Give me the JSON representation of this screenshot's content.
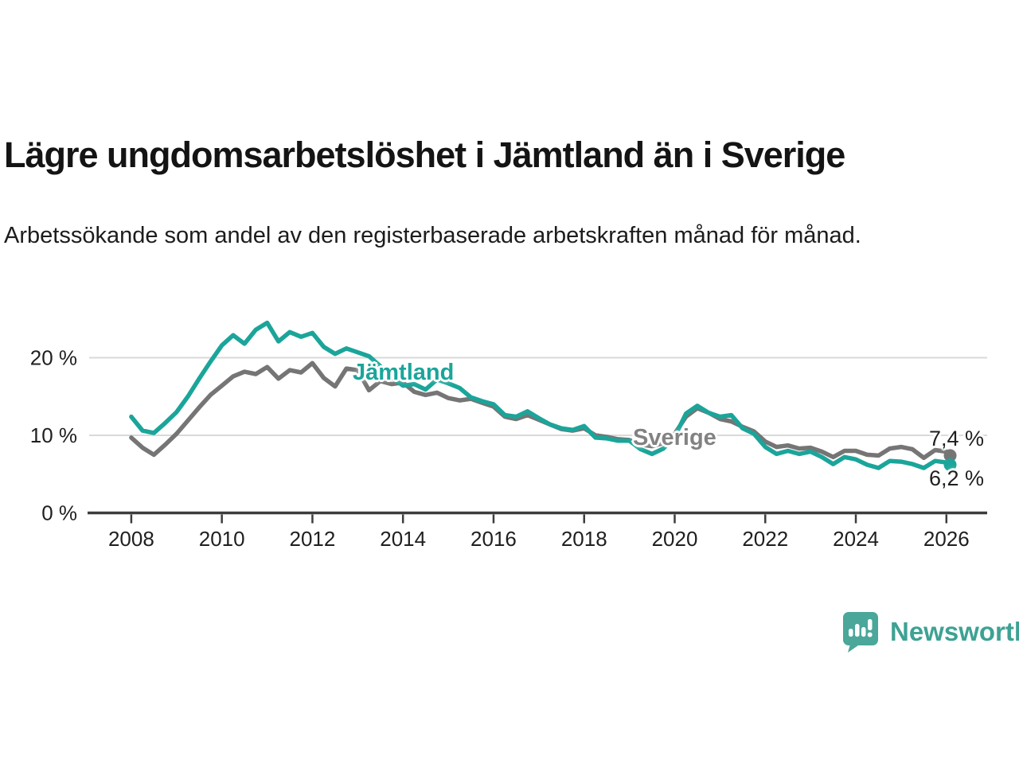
{
  "header": {
    "title": "Lägre ungdomsarbetslöshet i Jämtland än i Sverige",
    "subtitle": "Arbetssökande som andel av den registerbaserade arbetskraften månad för månad."
  },
  "colors": {
    "jamtland": "#1ba59a",
    "sverige": "#757575",
    "grid": "#d9d9d9",
    "axis": "#3d3d3d",
    "tick_text": "#1f1f1f",
    "brand": "#3da294"
  },
  "chart_data": {
    "type": "line",
    "title": "Lägre ungdomsarbetslöshet i Jämtland än i Sverige",
    "xlabel": "",
    "ylabel": "Arbetssökande som andel av den registerbaserade arbetskraften (%)",
    "grid": "horizontal-only",
    "legend_position": "inline-labels-on-lines",
    "xlim": [
      2007.07,
      2026.9
    ],
    "ylim": [
      0,
      27
    ],
    "x_ticks": [
      {
        "value": 2008,
        "label": "2008"
      },
      {
        "value": 2010,
        "label": "2010"
      },
      {
        "value": 2012,
        "label": "2012"
      },
      {
        "value": 2014,
        "label": "2014"
      },
      {
        "value": 2016,
        "label": "2016"
      },
      {
        "value": 2018,
        "label": "2018"
      },
      {
        "value": 2020,
        "label": "2020"
      },
      {
        "value": 2022,
        "label": "2022"
      },
      {
        "value": 2024,
        "label": "2024"
      },
      {
        "value": 2026,
        "label": "2026"
      }
    ],
    "y_ticks": [
      {
        "value": 0,
        "label": "0 %"
      },
      {
        "value": 10,
        "label": "10 %"
      },
      {
        "value": 20,
        "label": "20 %"
      }
    ],
    "x": [
      2008.0,
      2008.25,
      2008.5,
      2008.75,
      2009.0,
      2009.25,
      2009.5,
      2009.75,
      2010.0,
      2010.25,
      2010.5,
      2010.75,
      2011.0,
      2011.25,
      2011.5,
      2011.75,
      2012.0,
      2012.25,
      2012.5,
      2012.75,
      2013.0,
      2013.25,
      2013.5,
      2013.75,
      2014.0,
      2014.25,
      2014.5,
      2014.75,
      2015.0,
      2015.25,
      2015.5,
      2015.75,
      2016.0,
      2016.25,
      2016.5,
      2016.75,
      2017.0,
      2017.25,
      2017.5,
      2017.75,
      2018.0,
      2018.25,
      2018.5,
      2018.75,
      2019.0,
      2019.25,
      2019.5,
      2019.75,
      2020.0,
      2020.25,
      2020.5,
      2020.75,
      2021.0,
      2021.25,
      2021.5,
      2021.75,
      2022.0,
      2022.25,
      2022.5,
      2022.75,
      2023.0,
      2023.25,
      2023.5,
      2023.75,
      2024.0,
      2024.25,
      2024.5,
      2024.75,
      2025.0,
      2025.25,
      2025.5,
      2025.75,
      2026.0,
      2026.083
    ],
    "series": [
      {
        "key": "jamtland",
        "name": "Jämtland",
        "color": "#1ba59a",
        "end_label": "6,2 %",
        "end_value": 6.2,
        "values": [
          12.4,
          10.6,
          10.3,
          11.6,
          13.0,
          15.0,
          17.3,
          19.5,
          21.6,
          22.9,
          21.8,
          23.6,
          24.5,
          22.1,
          23.3,
          22.7,
          23.2,
          21.4,
          20.5,
          21.2,
          20.7,
          20.2,
          18.9,
          17.5,
          16.4,
          16.6,
          15.9,
          17.2,
          16.7,
          16.1,
          14.9,
          14.4,
          14.0,
          12.6,
          12.4,
          13.1,
          12.2,
          11.4,
          10.9,
          10.7,
          11.2,
          9.7,
          9.6,
          9.3,
          9.3,
          8.2,
          7.6,
          8.3,
          9.8,
          12.8,
          13.8,
          12.9,
          12.4,
          12.6,
          10.9,
          10.2,
          8.5,
          7.6,
          8.0,
          7.6,
          7.9,
          7.2,
          6.3,
          7.2,
          6.9,
          6.2,
          5.8,
          6.7,
          6.6,
          6.3,
          5.8,
          6.7,
          6.5,
          6.2
        ]
      },
      {
        "key": "sverige",
        "name": "Sverige",
        "color": "#757575",
        "end_label": "7,4 %",
        "end_value": 7.4,
        "values": [
          9.7,
          8.4,
          7.5,
          8.8,
          10.2,
          11.9,
          13.6,
          15.2,
          16.4,
          17.6,
          18.2,
          17.9,
          18.8,
          17.3,
          18.4,
          18.1,
          19.3,
          17.4,
          16.3,
          18.6,
          18.4,
          15.8,
          17.0,
          16.6,
          16.8,
          15.6,
          15.2,
          15.5,
          14.8,
          14.5,
          14.7,
          14.2,
          13.7,
          12.4,
          12.1,
          12.6,
          12.0,
          11.4,
          10.8,
          10.6,
          10.9,
          10.0,
          9.8,
          9.5,
          9.4,
          8.8,
          8.6,
          9.0,
          10.2,
          12.4,
          13.5,
          12.9,
          12.1,
          11.8,
          11.1,
          10.5,
          9.2,
          8.5,
          8.7,
          8.3,
          8.4,
          7.9,
          7.2,
          8.0,
          8.0,
          7.5,
          7.4,
          8.3,
          8.5,
          8.2,
          7.1,
          8.1,
          7.9,
          7.4
        ]
      }
    ]
  },
  "branding": {
    "logo_text": "Newsworthy",
    "logo_icon": "newsworthy-speech-bubble-bar-chart"
  }
}
